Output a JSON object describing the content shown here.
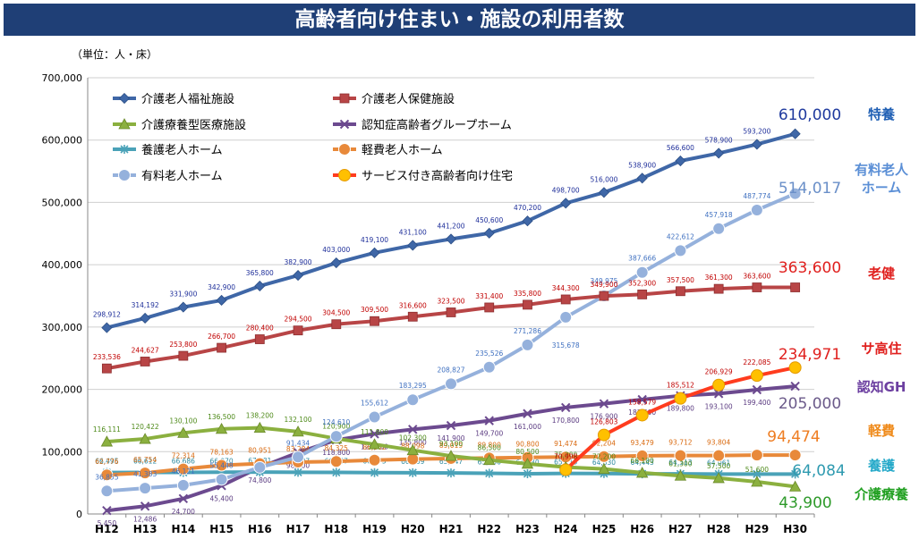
{
  "header": {
    "title": "高齢者向け住まい・施設の利用者数"
  },
  "unit_label": "（単位：人・床）",
  "colors": {
    "title_bar": "#1f3f76",
    "tokuyo": "#3f67a7",
    "roken": "#b84546",
    "ryoyo": "#8bb03f",
    "gh": "#6c4a8f",
    "yogo": "#4aa2b8",
    "keihi": "#e8893a",
    "yuryo": "#95b1dc",
    "sakoju": "#ff3c1e"
  },
  "chart_data": {
    "type": "line",
    "x": [
      "H12",
      "H13",
      "H14",
      "H15",
      "H16",
      "H17",
      "H18",
      "H19",
      "H20",
      "H21",
      "H22",
      "H23",
      "H24",
      "H25",
      "H26",
      "H27",
      "H28",
      "H29",
      "H30"
    ],
    "ylim": [
      0,
      700000
    ],
    "yticks": [
      0,
      100000,
      200000,
      300000,
      400000,
      500000,
      600000,
      700000
    ],
    "ytick_labels": [
      "0",
      "100,000",
      "200,000",
      "300,000",
      "400,000",
      "500,000",
      "600,000",
      "700,000"
    ],
    "grid": true,
    "legend": "top-left",
    "series": [
      {
        "key": "tokuyo",
        "name": "介護老人福祉施設",
        "color": "#3f67a7",
        "marker": "diamond",
        "values": [
          298912,
          314192,
          331900,
          342900,
          365800,
          382900,
          403000,
          419100,
          431100,
          441200,
          450600,
          470200,
          498700,
          516000,
          538900,
          566600,
          578900,
          593200,
          610000
        ],
        "labels": [
          "298,912",
          "314,192",
          "331,900",
          "342,900",
          "365,800",
          "382,900",
          "403,000",
          "419,100",
          "431,100",
          "441,200",
          "450,600",
          "470,200",
          "498,700",
          "516,000",
          "538,900",
          "566,600",
          "578,900",
          "593,200",
          ""
        ],
        "final_label": "610,000",
        "side_label": "特養"
      },
      {
        "key": "roken",
        "name": "介護老人保健施設",
        "color": "#b84546",
        "marker": "square",
        "values": [
          233536,
          244627,
          253800,
          266700,
          280400,
          294500,
          304500,
          309500,
          316600,
          323500,
          331400,
          335800,
          344300,
          349900,
          352300,
          357500,
          361300,
          363600,
          363600
        ],
        "labels": [
          "233,536",
          "244,627",
          "253,800",
          "266,700",
          "280,400",
          "294,500",
          "304,500",
          "309,500",
          "316,600",
          "323,500",
          "331,400",
          "335,800",
          "344,300",
          "349,900",
          "352,300",
          "357,500",
          "361,300",
          "363,600",
          ""
        ],
        "final_label": "363,600",
        "side_label": "老健"
      },
      {
        "key": "ryoyo",
        "name": "介護療養型医療施設",
        "color": "#8bb03f",
        "marker": "triangle",
        "values": [
          116111,
          120422,
          130100,
          136500,
          138200,
          132100,
          120900,
          111800,
          102300,
          93100,
          86500,
          80500,
          75200,
          72200,
          66100,
          61300,
          57500,
          51600,
          43900
        ],
        "labels": [
          "116,111",
          "120,422",
          "130,100",
          "136,500",
          "138,200",
          "132,100",
          "120,900",
          "111,800",
          "102,300",
          "93,100",
          "86,500",
          "80,500",
          "75,200",
          "72,200",
          "66,100",
          "61,300",
          "57,500",
          "51,600",
          ""
        ],
        "final_label": "43,900",
        "side_label": "介護療養"
      },
      {
        "key": "gh",
        "name": "認知症高齢者グループホーム",
        "color": "#6c4a8f",
        "marker": "x",
        "values": [
          5450,
          12486,
          24700,
          45400,
          74800,
          98500,
          118800,
          128500,
          135800,
          141900,
          149700,
          161000,
          170800,
          176900,
          183600,
          189800,
          193100,
          199400,
          205000
        ],
        "labels": [
          "5,450",
          "12,486",
          "24,700",
          "45,400",
          "74,800",
          "98,500",
          "118,800",
          "128,500",
          "135,800",
          "141,900",
          "149,700",
          "161,000",
          "170,800",
          "176,900",
          "183,600",
          "189,800",
          "193,100",
          "199,400",
          ""
        ],
        "final_label": "205,000",
        "side_label": "認知GH"
      },
      {
        "key": "yogo",
        "name": "養護老人ホーム",
        "color": "#4aa2b8",
        "marker": "star",
        "values": [
          66495,
          66612,
          66686,
          66970,
          67181,
          66837,
          66667,
          66375,
          66239,
          65847,
          65186,
          64630,
          65113,
          64830,
          64443,
          64313,
          64061,
          64084,
          64084
        ],
        "labels": [
          "66,495",
          "66,612",
          "66,686",
          "66,970",
          "67,181",
          "66,837",
          "66,667",
          "66,375",
          "66,239",
          "65,847",
          "65,186",
          "64,630",
          "65,113",
          "64,830",
          "64,443",
          "64,313",
          "64,061",
          "",
          ""
        ],
        "final_label": "64,084",
        "side_label": "養護"
      },
      {
        "key": "keihi",
        "name": "軽費老人ホーム",
        "color": "#e8893a",
        "marker": "circle",
        "values": [
          62776,
          65754,
          72314,
          78163,
          80951,
          83284,
          84325,
          86362,
          88098,
          89019,
          89800,
          90800,
          91474,
          92204,
          93479,
          93712,
          93804,
          94474,
          94474
        ],
        "labels": [
          "62,776",
          "65,754",
          "72,314",
          "78,163",
          "80,951",
          "83,284",
          "84,325",
          "86,362",
          "88,098",
          "89,019",
          "89,800",
          "90,800",
          "91,474",
          "92,204",
          "93,479",
          "93,712",
          "93,804",
          "",
          ""
        ],
        "final_label": "94,474",
        "side_label": "軽費"
      },
      {
        "key": "yuryo",
        "name": "有料老人ホーム",
        "color": "#95b1dc",
        "marker": "circle",
        "values": [
          36855,
          41383,
          46121,
          55448,
          74800,
          91434,
          124610,
          155612,
          183295,
          208827,
          235526,
          271286,
          315678,
          349975,
          387666,
          422612,
          457918,
          487774,
          514017
        ],
        "labels": [
          "36,855",
          "41,383",
          "46,121",
          "55,448",
          "",
          "91,434",
          "124,610",
          "155,612",
          "183,295",
          "208,827",
          "235,526",
          "271,286",
          "315,678",
          "349,975",
          "387,666",
          "422,612",
          "457,918",
          "487,774",
          ""
        ],
        "final_label": "514,017",
        "side_label": "有料老人ホーム"
      },
      {
        "key": "sakoju",
        "name": "サービス付き高齢者向け住宅",
        "color": "#ff3c1e",
        "marker": "circle-yellow",
        "start_index": 12,
        "values": [
          null,
          null,
          null,
          null,
          null,
          null,
          null,
          null,
          null,
          null,
          null,
          null,
          70998,
          126803,
          158579,
          185512,
          206929,
          222085,
          234971
        ],
        "labels": [
          "",
          "",
          "",
          "",
          "",
          "",
          "",
          "",
          "",
          "",
          "",
          "",
          "70,998",
          "126,803",
          "158,579",
          "185,512",
          "206,929",
          "222,085",
          ""
        ],
        "final_label": "234,971",
        "side_label": "サ高住"
      }
    ]
  }
}
